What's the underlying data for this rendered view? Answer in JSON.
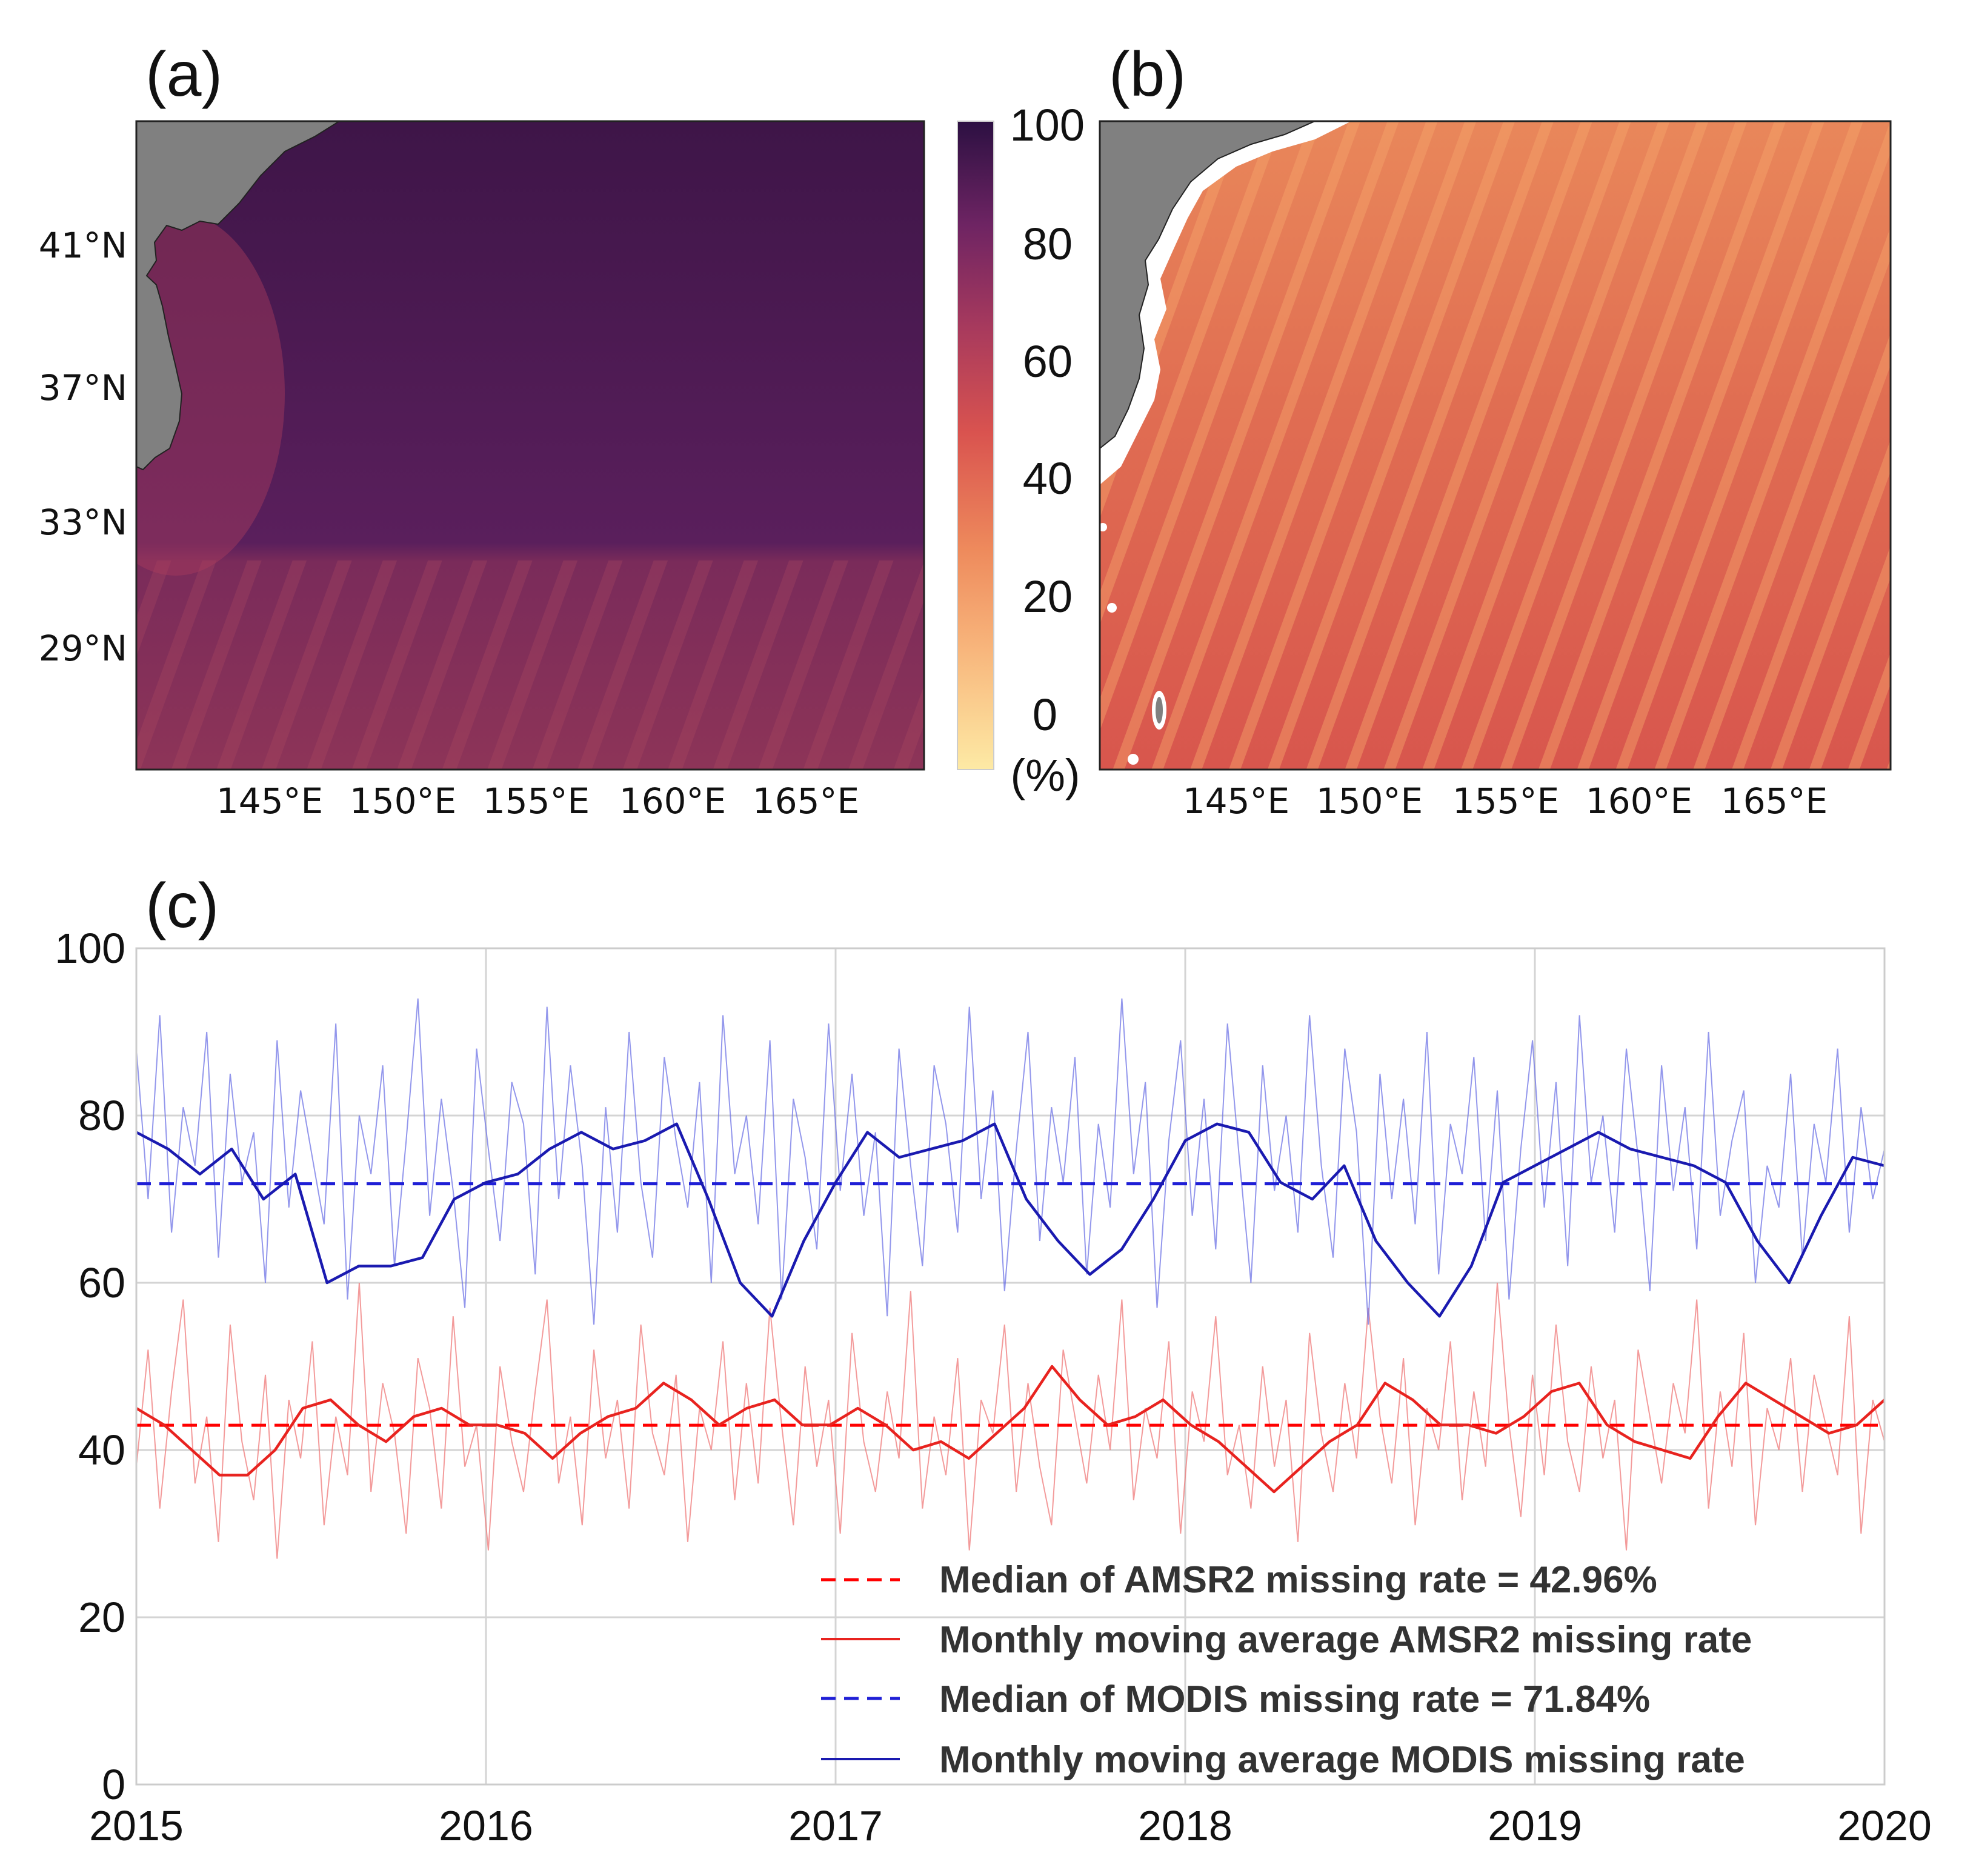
{
  "panels": {
    "a": {
      "label": "(a)"
    },
    "b": {
      "label": "(b)"
    },
    "c": {
      "label": "(c)"
    }
  },
  "map_axes": {
    "lon_ticks": [
      "145°E",
      "150°E",
      "155°E",
      "160°E",
      "165°E"
    ],
    "lat_ticks": [
      "41°N",
      "37°N",
      "33°N",
      "29°N"
    ]
  },
  "colorbar": {
    "ticks": [
      "100",
      "80",
      "60",
      "40",
      "20",
      "0"
    ],
    "unit": "(%)",
    "colors": [
      "#fdeaa5",
      "#f8b77d",
      "#ee8a5c",
      "#d9534f",
      "#a83a5d",
      "#6e2463",
      "#2c1042"
    ]
  },
  "map_a": {
    "colors": {
      "land": "#808080",
      "north": "#4d1a52",
      "south": "#7a2b5a",
      "coast_glow": "#a83c5e",
      "stripe": "#9a4060"
    }
  },
  "map_b": {
    "colors": {
      "land": "#808080",
      "coast_buffer": "#ffffff",
      "north": "#e67a52",
      "south": "#d8584e",
      "stripe": "#f29660"
    }
  },
  "chart_data": {
    "type": "line",
    "title": "",
    "xlabel": "",
    "ylabel": "",
    "xlim": [
      2015,
      2020
    ],
    "ylim": [
      0,
      100
    ],
    "x_ticks": [
      "2015",
      "2016",
      "2017",
      "2018",
      "2019",
      "2020"
    ],
    "y_ticks": [
      "0",
      "20",
      "40",
      "60",
      "80",
      "100"
    ],
    "grid": true,
    "legend_position": "bottom-right",
    "x_step_years": 0.0833,
    "series": [
      {
        "name": "Median of AMSR2 missing rate = 42.96%",
        "style": "dashed",
        "color": "#ff0000",
        "constant": 42.96
      },
      {
        "name": "Monthly moving average AMSR2 missing rate",
        "style": "solid",
        "color": "#e8231f",
        "values": [
          45,
          43,
          40,
          37,
          37,
          40,
          45,
          46,
          43,
          41,
          44,
          45,
          43,
          43,
          42,
          39,
          42,
          44,
          45,
          48,
          46,
          43,
          45,
          46,
          43,
          43,
          45,
          43,
          40,
          41,
          39,
          42,
          45,
          50,
          46,
          43,
          44,
          46,
          43,
          41,
          38,
          35,
          38,
          41,
          43,
          48,
          46,
          43,
          43,
          42,
          44,
          47,
          48,
          43,
          41,
          40,
          39,
          44,
          48,
          46,
          44,
          42,
          43,
          46
        ]
      },
      {
        "name": "Median of MODIS missing rate = 71.84%",
        "style": "dashed",
        "color": "#1f1fd6",
        "constant": 71.84
      },
      {
        "name": "Monthly moving average MODIS missing rate",
        "style": "solid",
        "color": "#1a1ab0",
        "values": [
          78,
          76,
          73,
          76,
          70,
          73,
          60,
          62,
          62,
          63,
          70,
          72,
          73,
          76,
          78,
          76,
          77,
          79,
          70,
          60,
          56,
          65,
          72,
          78,
          75,
          76,
          77,
          79,
          70,
          65,
          61,
          64,
          70,
          77,
          79,
          78,
          72,
          70,
          74,
          65,
          60,
          56,
          62,
          72,
          74,
          76,
          78,
          76,
          75,
          74,
          72,
          65,
          60,
          68,
          75,
          74
        ]
      }
    ],
    "noise_series": [
      {
        "name": "Daily AMSR2 missing rate",
        "color": "#ef7a7a",
        "values": [
          38,
          52,
          33,
          47,
          58,
          36,
          44,
          29,
          55,
          41,
          34,
          49,
          27,
          46,
          39,
          53,
          31,
          44,
          37,
          60,
          35,
          48,
          42,
          30,
          51,
          45,
          33,
          56,
          38,
          43,
          28,
          50,
          41,
          35,
          47,
          58,
          36,
          44,
          31,
          52,
          39,
          46,
          33,
          55,
          42,
          37,
          49,
          29,
          45,
          40,
          53,
          34,
          48,
          36,
          57,
          43,
          31,
          50,
          38,
          46,
          30,
          54,
          41,
          35,
          47,
          39,
          59,
          33,
          44,
          37,
          51,
          28,
          46,
          42,
          55,
          35,
          48,
          38,
          31,
          52,
          44,
          36,
          49,
          40,
          58,
          34,
          45,
          39,
          53,
          30,
          47,
          41,
          56,
          37,
          43,
          33,
          50,
          38,
          46,
          29,
          54,
          42,
          35,
          48,
          39,
          57,
          44,
          36,
          51,
          31,
          45,
          40,
          53,
          34,
          47,
          38,
          60,
          43,
          32,
          49,
          37,
          55,
          41,
          35,
          50,
          39,
          46,
          28,
          52,
          44,
          36,
          48,
          42,
          58,
          33,
          47,
          38,
          54,
          31,
          45,
          40,
          51,
          35,
          49,
          43,
          37,
          56,
          30,
          46,
          41
        ]
      },
      {
        "name": "Daily MODIS missing rate",
        "color": "#6f74e6",
        "values": [
          88,
          70,
          92,
          66,
          81,
          74,
          90,
          63,
          85,
          72,
          78,
          60,
          89,
          69,
          83,
          75,
          67,
          91,
          58,
          80,
          73,
          86,
          62,
          77,
          94,
          68,
          82,
          71,
          57,
          88,
          76,
          65,
          84,
          79,
          61,
          93,
          70,
          86,
          74,
          55,
          81,
          66,
          90,
          72,
          63,
          87,
          77,
          69,
          84,
          60,
          92,
          73,
          80,
          67,
          89,
          58,
          82,
          75,
          64,
          91,
          71,
          85,
          68,
          78,
          56,
          88,
          74,
          62,
          86,
          79,
          66,
          93,
          70,
          83,
          59,
          76,
          90,
          65,
          81,
          72,
          87,
          61,
          79,
          69,
          94,
          73,
          84,
          57,
          77,
          89,
          68,
          82,
          64,
          91,
          75,
          60,
          86,
          71,
          80,
          66,
          92,
          74,
          63,
          88,
          78,
          55,
          85,
          70,
          82,
          67,
          90,
          61,
          79,
          73,
          87,
          65,
          83,
          58,
          76,
          89,
          69,
          84,
          62,
          92,
          72,
          80,
          66,
          88,
          75,
          59,
          86,
          71,
          81,
          64,
          90,
          68,
          77,
          83,
          60,
          74,
          69,
          85,
          63,
          79,
          72,
          88,
          66,
          81,
          70,
          76
        ]
      }
    ]
  },
  "legend": {
    "items": [
      "Median of AMSR2 missing rate = 42.96%",
      "Monthly moving average AMSR2 missing rate",
      "Median of MODIS missing rate = 71.84%",
      "Monthly moving average MODIS missing rate"
    ]
  }
}
